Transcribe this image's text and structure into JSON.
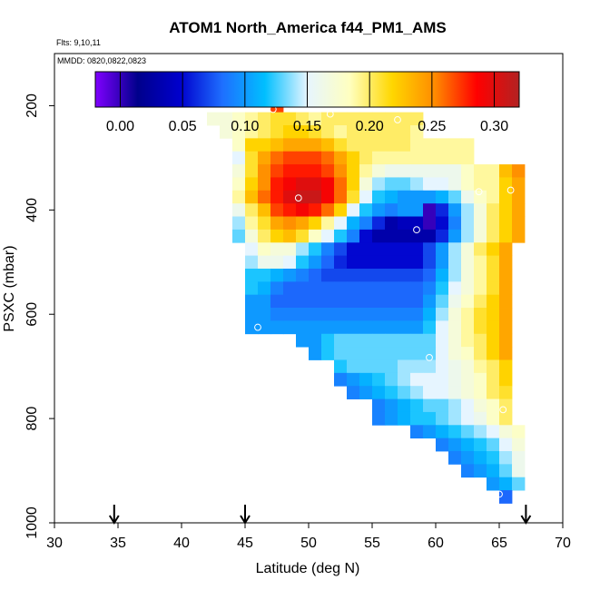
{
  "chart_data": {
    "type": "heatmap",
    "title": "ATOM1 North_America f44_PM1_AMS",
    "flights_label": "Flts: 9,10,11",
    "dates_label": "MMDD: 0820,0822,0823",
    "xlabel": "Latitude (deg N)",
    "ylabel": "PSXC (mbar)",
    "xlim": [
      30,
      70
    ],
    "ylim": [
      1000,
      100
    ],
    "x_ticks": [
      30,
      35,
      40,
      45,
      50,
      55,
      60,
      65,
      70
    ],
    "y_ticks": [
      200,
      400,
      600,
      800,
      1000
    ],
    "x_tick_labels": [
      "30",
      "35",
      "40",
      "45",
      "50",
      "55",
      "60",
      "65",
      "70"
    ],
    "y_tick_labels": [
      "200",
      "400",
      "600",
      "800",
      "1000"
    ],
    "colorbar": {
      "min": -0.02,
      "max": 0.32,
      "ticks": [
        0.0,
        0.05,
        0.1,
        0.15,
        0.2,
        0.25,
        0.3
      ],
      "tick_labels": [
        "0.00",
        "0.05",
        "0.10",
        "0.15",
        "0.20",
        "0.25",
        "0.30"
      ],
      "colors": [
        "#8000ff",
        "#00008b",
        "#0000cd",
        "#1e6fff",
        "#00bfff",
        "#e6f5ff",
        "#ffffc0",
        "#ffd700",
        "#ff8c00",
        "#ff0000",
        "#b22222"
      ]
    },
    "cell_width_deg": 1,
    "cell_height_mbar": 25,
    "rows": [
      {
        "p": 200,
        "lat_start": 47,
        "values": [
          0.27
        ]
      },
      {
        "p": 225,
        "lat_start": 42,
        "values": [
          0.17,
          0.17,
          0.18,
          0.19,
          0.2,
          0.21,
          0.21,
          0.2,
          0.19,
          0.2,
          0.2,
          0.2,
          0.2,
          0.2,
          0.2,
          0.2,
          0.2
        ]
      },
      {
        "p": 250,
        "lat_start": 43,
        "values": [
          0.17,
          0.18,
          0.19,
          0.2,
          0.21,
          0.22,
          0.22,
          0.21,
          0.2,
          0.19,
          0.2,
          0.2,
          0.2,
          0.2,
          0.2,
          0.19
        ]
      },
      {
        "p": 275,
        "lat_start": 44,
        "values": [
          0.18,
          0.22,
          0.22,
          0.23,
          0.24,
          0.24,
          0.24,
          0.23,
          0.21,
          0.2,
          0.2,
          0.2,
          0.2,
          0.2,
          0.19,
          0.19,
          0.19,
          0.19,
          0.19
        ]
      },
      {
        "p": 300,
        "lat_start": 44,
        "values": [
          0.15,
          0.21,
          0.24,
          0.26,
          0.27,
          0.27,
          0.27,
          0.26,
          0.24,
          0.22,
          0.2,
          0.19,
          0.19,
          0.19,
          0.19,
          0.19,
          0.19,
          0.19,
          0.19
        ]
      },
      {
        "p": 325,
        "lat_start": 44,
        "values": [
          0.17,
          0.21,
          0.25,
          0.27,
          0.28,
          0.28,
          0.28,
          0.27,
          0.25,
          0.22,
          0.19,
          0.17,
          0.16,
          0.16,
          0.16,
          0.16,
          0.16,
          0.16,
          0.18,
          0.19,
          0.19,
          0.23,
          0.25
        ]
      },
      {
        "p": 350,
        "lat_start": 44,
        "values": [
          0.18,
          0.22,
          0.25,
          0.28,
          0.29,
          0.3,
          0.3,
          0.29,
          0.26,
          0.22,
          0.17,
          0.14,
          0.13,
          0.13,
          0.14,
          0.15,
          0.15,
          0.16,
          0.18,
          0.19,
          0.19,
          0.22,
          0.24
        ]
      },
      {
        "p": 375,
        "lat_start": 44,
        "values": [
          0.19,
          0.23,
          0.26,
          0.28,
          0.3,
          0.31,
          0.31,
          0.29,
          0.26,
          0.21,
          0.15,
          0.12,
          0.11,
          0.1,
          0.1,
          0.1,
          0.11,
          0.13,
          0.16,
          0.18,
          0.19,
          0.22,
          0.24
        ]
      },
      {
        "p": 400,
        "lat_start": 44,
        "values": [
          0.16,
          0.2,
          0.23,
          0.27,
          0.28,
          0.29,
          0.28,
          0.26,
          0.22,
          0.15,
          0.12,
          0.1,
          0.09,
          0.1,
          0.1,
          0.0,
          0.06,
          0.1,
          0.14,
          0.17,
          0.2,
          0.22,
          0.24
        ]
      },
      {
        "p": 425,
        "lat_start": 44,
        "values": [
          0.14,
          0.19,
          0.21,
          0.24,
          0.25,
          0.24,
          0.22,
          0.19,
          0.15,
          0.11,
          0.09,
          0.06,
          0.03,
          0.04,
          0.04,
          0.0,
          0.05,
          0.09,
          0.14,
          0.17,
          0.2,
          0.22,
          0.24
        ]
      },
      {
        "p": 450,
        "lat_start": 44,
        "values": [
          0.13,
          0.17,
          0.2,
          0.22,
          0.23,
          0.21,
          0.18,
          0.15,
          0.12,
          0.09,
          0.05,
          0.03,
          0.03,
          0.03,
          0.03,
          0.03,
          0.06,
          0.1,
          0.14,
          0.17,
          0.2,
          0.22,
          0.24
        ]
      },
      {
        "p": 475,
        "lat_start": 45,
        "values": [
          0.15,
          0.18,
          0.17,
          0.17,
          0.14,
          0.12,
          0.09,
          0.07,
          0.05,
          0.05,
          0.05,
          0.05,
          0.05,
          0.05,
          0.07,
          0.1,
          0.14,
          0.17,
          0.2,
          0.22,
          0.24
        ]
      },
      {
        "p": 500,
        "lat_start": 45,
        "values": [
          0.14,
          0.16,
          0.16,
          0.15,
          0.12,
          0.1,
          0.08,
          0.06,
          0.05,
          0.05,
          0.05,
          0.05,
          0.05,
          0.05,
          0.07,
          0.1,
          0.14,
          0.17,
          0.19,
          0.21,
          0.24
        ]
      },
      {
        "p": 525,
        "lat_start": 45,
        "values": [
          0.12,
          0.12,
          0.11,
          0.1,
          0.09,
          0.08,
          0.07,
          0.07,
          0.07,
          0.07,
          0.07,
          0.07,
          0.07,
          0.07,
          0.08,
          0.11,
          0.14,
          0.17,
          0.19,
          0.21,
          0.24
        ]
      },
      {
        "p": 550,
        "lat_start": 45,
        "values": [
          0.12,
          0.11,
          0.09,
          0.08,
          0.08,
          0.08,
          0.08,
          0.08,
          0.08,
          0.08,
          0.08,
          0.08,
          0.08,
          0.08,
          0.09,
          0.12,
          0.15,
          0.17,
          0.19,
          0.21,
          0.24
        ]
      },
      {
        "p": 575,
        "lat_start": 45,
        "values": [
          0.1,
          0.1,
          0.08,
          0.08,
          0.08,
          0.08,
          0.08,
          0.08,
          0.08,
          0.08,
          0.08,
          0.08,
          0.08,
          0.08,
          0.1,
          0.13,
          0.16,
          0.18,
          0.2,
          0.22,
          0.24
        ]
      },
      {
        "p": 600,
        "lat_start": 45,
        "values": [
          0.1,
          0.1,
          0.09,
          0.09,
          0.09,
          0.09,
          0.09,
          0.09,
          0.09,
          0.09,
          0.09,
          0.09,
          0.09,
          0.09,
          0.11,
          0.14,
          0.17,
          0.19,
          0.21,
          0.22,
          0.24
        ]
      },
      {
        "p": 625,
        "lat_start": 45,
        "values": [
          0.1,
          0.1,
          0.1,
          0.1,
          0.1,
          0.1,
          0.1,
          0.1,
          0.1,
          0.1,
          0.1,
          0.1,
          0.1,
          0.1,
          0.12,
          0.15,
          0.17,
          0.19,
          0.21,
          0.22,
          0.24
        ]
      },
      {
        "p": 650,
        "lat_start": 49,
        "values": [
          0.1,
          0.1,
          0.12,
          0.13,
          0.13,
          0.13,
          0.13,
          0.13,
          0.13,
          0.13,
          0.13,
          0.15,
          0.17,
          0.19,
          0.2,
          0.22,
          0.24
        ]
      },
      {
        "p": 675,
        "lat_start": 50,
        "values": [
          0.1,
          0.12,
          0.13,
          0.13,
          0.13,
          0.13,
          0.13,
          0.13,
          0.13,
          0.13,
          0.15,
          0.17,
          0.18,
          0.2,
          0.22,
          0.24
        ]
      },
      {
        "p": 700,
        "lat_start": 52,
        "values": [
          0.12,
          0.13,
          0.13,
          0.13,
          0.13,
          0.14,
          0.14,
          0.14,
          0.15,
          0.16,
          0.17,
          0.19,
          0.2,
          0.22
        ]
      },
      {
        "p": 725,
        "lat_start": 52,
        "values": [
          0.09,
          0.1,
          0.11,
          0.12,
          0.13,
          0.14,
          0.15,
          0.15,
          0.15,
          0.16,
          0.17,
          0.18,
          0.2,
          0.22
        ]
      },
      {
        "p": 750,
        "lat_start": 53,
        "values": [
          0.09,
          0.1,
          0.11,
          0.12,
          0.13,
          0.14,
          0.15,
          0.15,
          0.16,
          0.17,
          0.18,
          0.2,
          0.21
        ]
      },
      {
        "p": 775,
        "lat_start": 55,
        "values": [
          0.09,
          0.1,
          0.11,
          0.12,
          0.13,
          0.13,
          0.14,
          0.15,
          0.17,
          0.18,
          0.2
        ]
      },
      {
        "p": 800,
        "lat_start": 55,
        "values": [
          0.09,
          0.1,
          0.11,
          0.12,
          0.12,
          0.13,
          0.14,
          0.15,
          0.16,
          0.18,
          0.2
        ]
      },
      {
        "p": 825,
        "lat_start": 58,
        "values": [
          0.09,
          0.1,
          0.11,
          0.12,
          0.13,
          0.14,
          0.15,
          0.17,
          0.18
        ]
      },
      {
        "p": 850,
        "lat_start": 60,
        "values": [
          0.09,
          0.1,
          0.11,
          0.12,
          0.13,
          0.15,
          0.17
        ]
      },
      {
        "p": 875,
        "lat_start": 61,
        "values": [
          0.09,
          0.1,
          0.11,
          0.12,
          0.14,
          0.16
        ]
      },
      {
        "p": 900,
        "lat_start": 62,
        "values": [
          0.09,
          0.1,
          0.11,
          0.13,
          0.16
        ]
      },
      {
        "p": 925,
        "lat_start": 64,
        "values": [
          0.1,
          0.11,
          0.13
        ]
      },
      {
        "p": 950,
        "lat_start": 65,
        "values": [
          0.08
        ]
      }
    ],
    "markers": [
      {
        "lat": 47.2,
        "p": 207
      },
      {
        "lat": 51.7,
        "p": 216
      },
      {
        "lat": 57.0,
        "p": 227
      },
      {
        "lat": 49.2,
        "p": 377
      },
      {
        "lat": 63.4,
        "p": 365
      },
      {
        "lat": 65.9,
        "p": 362
      },
      {
        "lat": 58.5,
        "p": 438
      },
      {
        "lat": 46.0,
        "p": 625
      },
      {
        "lat": 59.5,
        "p": 683
      },
      {
        "lat": 65.3,
        "p": 783
      },
      {
        "lat": 65.0,
        "p": 945
      }
    ],
    "arrows_lat": [
      34.7,
      45.0,
      67.1
    ]
  }
}
